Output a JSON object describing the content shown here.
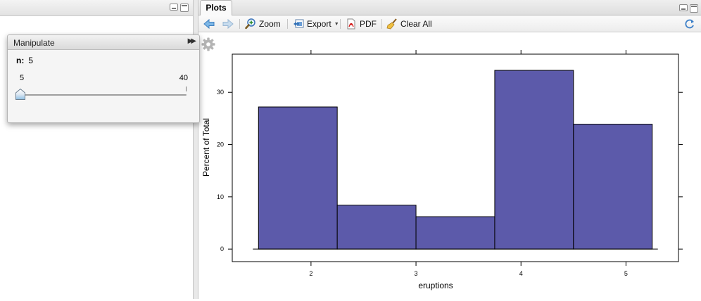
{
  "manipulate": {
    "title": "Manipulate",
    "param_label": "n:",
    "param_value": "5",
    "min_label": "5",
    "max_label": "40",
    "slider_fraction": 0
  },
  "plots_tab": {
    "label": "Plots"
  },
  "toolbar": {
    "zoom_label": "Zoom",
    "export_label": "Export",
    "pdf_label": "PDF",
    "clear_label": "Clear All"
  },
  "colors": {
    "bar_fill": "#5c5aaa",
    "accent": "#3b6fc8"
  },
  "chart_data": {
    "type": "bar",
    "xlabel": "eruptions",
    "ylabel": "Percent of Total",
    "x_ticks": [
      2,
      3,
      4,
      5
    ],
    "y_ticks": [
      0,
      10,
      20,
      30
    ],
    "xlim": [
      1.25,
      5.5
    ],
    "ylim": [
      -2.4,
      37.3
    ],
    "bins": [
      {
        "start": 1.5,
        "end": 2.25,
        "value": 27.2
      },
      {
        "start": 2.25,
        "end": 3.0,
        "value": 8.4
      },
      {
        "start": 3.0,
        "end": 3.75,
        "value": 6.2
      },
      {
        "start": 3.75,
        "end": 4.5,
        "value": 34.2
      },
      {
        "start": 4.5,
        "end": 5.25,
        "value": 23.9
      }
    ]
  }
}
